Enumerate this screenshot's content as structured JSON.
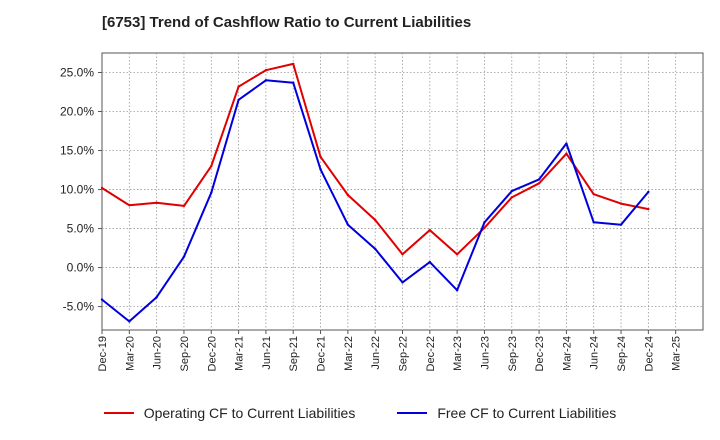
{
  "chart_data": {
    "type": "line",
    "title": "[6753]  Trend of Cashflow Ratio to Current Liabilities",
    "xlabel": "",
    "ylabel": "",
    "categories": [
      "Dec-19",
      "Mar-20",
      "Jun-20",
      "Sep-20",
      "Dec-20",
      "Mar-21",
      "Jun-21",
      "Sep-21",
      "Dec-21",
      "Mar-22",
      "Jun-22",
      "Sep-22",
      "Dec-22",
      "Mar-23",
      "Jun-23",
      "Sep-23",
      "Dec-23",
      "Mar-24",
      "Jun-24",
      "Sep-24",
      "Dec-24",
      "Mar-25"
    ],
    "ylim": [
      -8,
      27.5
    ],
    "yticks": [
      -5,
      0,
      5,
      10,
      15,
      20,
      25
    ],
    "ytick_labels": [
      "-5.0%",
      "0.0%",
      "5.0%",
      "10.0%",
      "15.0%",
      "20.0%",
      "25.0%"
    ],
    "grid": true,
    "legend_position": "bottom",
    "series": [
      {
        "name": "Operating CF to Current Liabilities",
        "color": "#e00000",
        "values": [
          10.2,
          8.0,
          8.3,
          7.9,
          13.0,
          23.2,
          25.3,
          26.1,
          14.2,
          9.3,
          6.1,
          1.7,
          4.8,
          1.7,
          5.1,
          9.0,
          10.8,
          14.6,
          9.4,
          8.2,
          7.5,
          null
        ]
      },
      {
        "name": "Free CF to Current Liabilities",
        "color": "#0000dd",
        "values": [
          -4.1,
          -6.9,
          -3.8,
          1.4,
          9.6,
          21.5,
          24.0,
          23.7,
          12.6,
          5.5,
          2.4,
          -1.9,
          0.7,
          -2.9,
          5.8,
          9.8,
          11.3,
          15.9,
          5.8,
          5.5,
          9.7,
          null
        ]
      }
    ]
  }
}
